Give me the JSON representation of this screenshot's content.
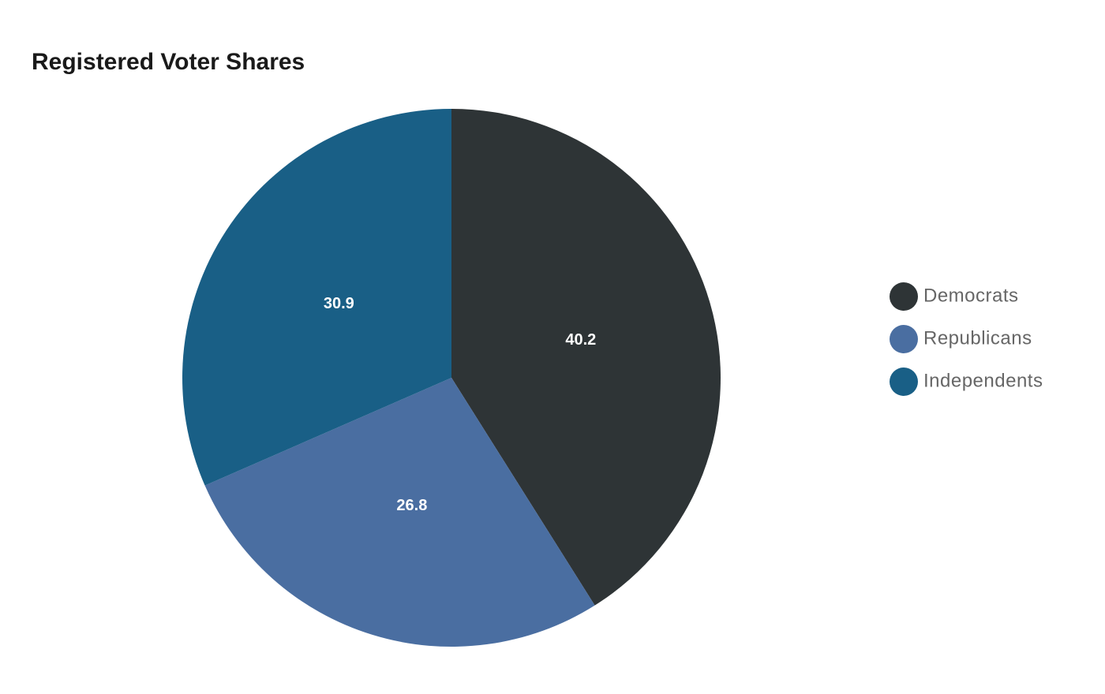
{
  "chart_data": {
    "type": "pie",
    "title": "Registered Voter Shares",
    "categories": [
      "Democrats",
      "Republicans",
      "Independents"
    ],
    "values": [
      40.2,
      26.8,
      30.9
    ],
    "colors": [
      "#2e3436",
      "#4a6ea1",
      "#195f86"
    ],
    "legend": "right"
  }
}
